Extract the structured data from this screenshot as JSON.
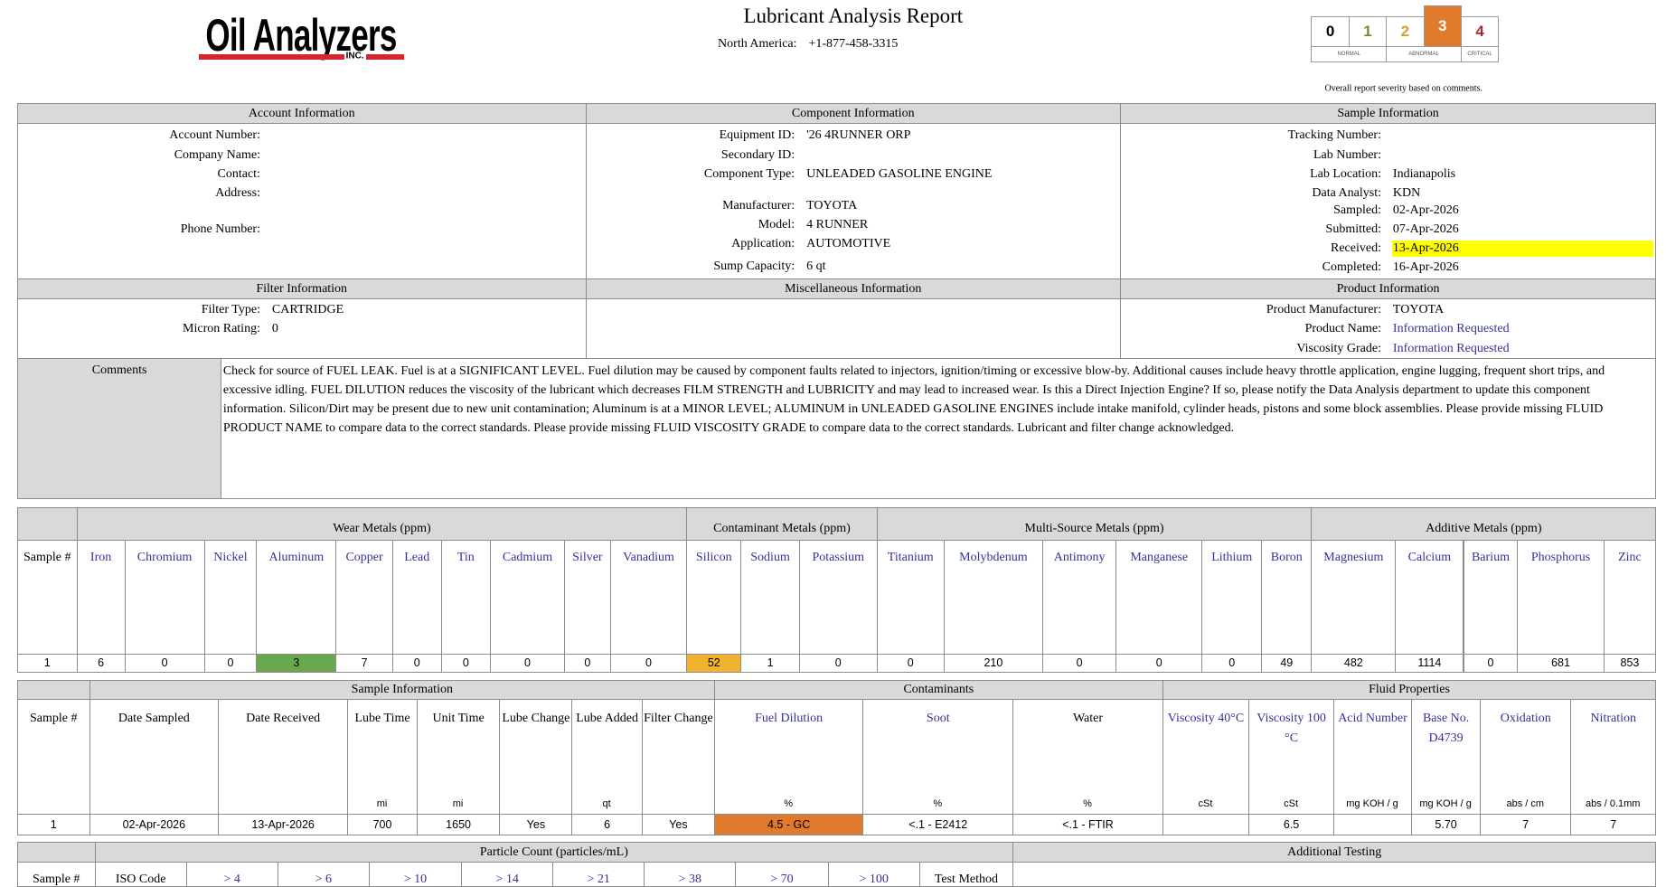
{
  "header": {
    "logo": "Oil Analyzers",
    "logo_suffix": "INC.",
    "title": "Lubricant Analysis Report",
    "region": "North America:",
    "phone": "+1-877-458-3315"
  },
  "severity": {
    "levels": [
      "0",
      "1",
      "2",
      "3",
      "4"
    ],
    "colors": [
      "#000000",
      "#6f8f2a",
      "#d4a22a",
      "#ffffff",
      "#a3282c"
    ],
    "selected": 3,
    "selected_color": "#e07a2c",
    "bands": [
      "NORMAL",
      "ABNORMAL",
      "CRITICAL"
    ],
    "note": "Overall report severity based on comments."
  },
  "account": {
    "heading": "Account Information",
    "fields": [
      {
        "label": "Account Number:"
      },
      {
        "label": "Company Name:"
      },
      {
        "label": "Contact:"
      },
      {
        "label": "Address:"
      },
      {
        "label": "Phone Number:"
      }
    ]
  },
  "component": {
    "heading": "Component Information",
    "fields": [
      {
        "label": "Equipment ID:",
        "value": "'26 4RUNNER ORP"
      },
      {
        "label": "Secondary ID:"
      },
      {
        "label": "Component Type:",
        "value": "UNLEADED GASOLINE ENGINE"
      },
      {
        "label": "Manufacturer:",
        "value": "TOYOTA"
      },
      {
        "label": "Model:",
        "value": "4 RUNNER"
      },
      {
        "label": "Application:",
        "value": "AUTOMOTIVE"
      },
      {
        "label": "Sump Capacity:",
        "value": "6 qt"
      }
    ]
  },
  "sample": {
    "heading": "Sample Information",
    "fields": [
      {
        "label": "Tracking Number:"
      },
      {
        "label": "Lab Number:"
      },
      {
        "label": "Lab Location:",
        "value": "Indianapolis"
      },
      {
        "label": "Data Analyst:",
        "value": "KDN"
      },
      {
        "label": "Sampled:",
        "value": "02-Apr-2026"
      },
      {
        "label": "Submitted:",
        "value": "07-Apr-2026"
      },
      {
        "label": "Received:",
        "value": "13-Apr-2026",
        "highlight": "#ffff00"
      },
      {
        "label": "Completed:",
        "value": "16-Apr-2026"
      }
    ]
  },
  "filter": {
    "heading": "Filter Information",
    "fields": [
      {
        "label": "Filter Type:",
        "value": "CARTRIDGE"
      },
      {
        "label": "Micron Rating:",
        "value": "0"
      }
    ]
  },
  "misc": {
    "heading": "Miscellaneous Information"
  },
  "product": {
    "heading": "Product Information",
    "fields": [
      {
        "label": "Product Manufacturer:",
        "value": "TOYOTA"
      },
      {
        "label": "Product Name:",
        "value": "Information Requested",
        "color": "#333399"
      },
      {
        "label": "Viscosity Grade:",
        "value": "Information Requested",
        "color": "#333399"
      }
    ]
  },
  "comments": {
    "label": "Comments",
    "text": "Check for source of FUEL LEAK. Fuel is at a SIGNIFICANT LEVEL. Fuel dilution may be caused by component faults related to injectors, ignition/timing or excessive blow-by. Additional causes include heavy throttle application, engine lugging, frequent short trips, and excessive idling. FUEL DILUTION reduces the viscosity of the lubricant which decreases FILM STRENGTH and LUBRICITY and may lead to increased wear. Is this a Direct Injection Engine? If so, please notify the Data Analysis department to update this component information. Silicon/Dirt may be present due to new unit contamination; Aluminum is at a MINOR LEVEL; ALUMINUM in UNLEADED GASOLINE ENGINES include intake manifold, cylinder heads, pistons and some block assemblies. Please provide missing FLUID PRODUCT NAME to compare data to the correct standards. Please provide missing FLUID VISCOSITY GRADE to compare data to the correct standards. Lubricant and filter change acknowledged."
  },
  "metals": {
    "groups": [
      {
        "name": "Wear Metals (ppm)",
        "span": 10
      },
      {
        "name": "Contaminant Metals (ppm)",
        "span": 3
      },
      {
        "name": "Multi-Source Metals (ppm)",
        "span": 6
      },
      {
        "name": "Additive Metals (ppm)",
        "span": 5
      }
    ],
    "sample_header": "Sample #",
    "columns": [
      {
        "name": "Iron",
        "color": "#333399"
      },
      {
        "name": "Chromium",
        "color": "#333399"
      },
      {
        "name": "Nickel",
        "color": "#333399"
      },
      {
        "name": "Aluminum",
        "color": "#333399"
      },
      {
        "name": "Copper",
        "color": "#333399"
      },
      {
        "name": "Lead",
        "color": "#333399"
      },
      {
        "name": "Tin",
        "color": "#333399"
      },
      {
        "name": "Cadmium",
        "color": "#333399"
      },
      {
        "name": "Silver",
        "color": "#333399"
      },
      {
        "name": "Vanadium",
        "color": "#333399"
      },
      {
        "name": "Silicon",
        "color": "#333399"
      },
      {
        "name": "Sodium",
        "color": "#333399"
      },
      {
        "name": "Potassium",
        "color": "#333399"
      },
      {
        "name": "Titanium",
        "color": "#333399"
      },
      {
        "name": "Molybdenum",
        "color": "#333399"
      },
      {
        "name": "Antimony",
        "color": "#333399"
      },
      {
        "name": "Manganese",
        "color": "#333399"
      },
      {
        "name": "Lithium",
        "color": "#333399"
      },
      {
        "name": "Boron",
        "color": "#333399"
      },
      {
        "name": "Magnesium",
        "color": "#333399"
      },
      {
        "name": "Calcium",
        "color": "#333399"
      },
      {
        "name": "Barium",
        "color": "#333399"
      },
      {
        "name": "Phosphorus",
        "color": "#333399"
      },
      {
        "name": "Zinc",
        "color": "#333399"
      }
    ],
    "rows": [
      {
        "sample": 1,
        "values": [
          6,
          0,
          0,
          {
            "value": 3,
            "color": "#6aa84f"
          },
          7,
          0,
          0,
          0,
          0,
          0,
          {
            "value": 52,
            "color": "#f1b32e"
          },
          1,
          0,
          0,
          210,
          0,
          0,
          0,
          49,
          482,
          1114,
          0,
          681,
          853
        ]
      }
    ]
  },
  "sample_table": {
    "groups": [
      {
        "name": "Sample Information",
        "span": 7
      },
      {
        "name": "Contaminants",
        "span": 3
      },
      {
        "name": "Fluid Properties",
        "span": 6
      }
    ],
    "sample_header": "Sample #",
    "columns": [
      {
        "name": "Date Sampled"
      },
      {
        "name": "Date  Received"
      },
      {
        "name": "Lube Time",
        "unit": "mi"
      },
      {
        "name": "Unit Time",
        "unit": "mi"
      },
      {
        "name": "Lube Change"
      },
      {
        "name": "Lube Added",
        "unit": "qt"
      },
      {
        "name": "Filter Change"
      },
      {
        "name": "Fuel Dilution",
        "unit": "%",
        "color": "#333399"
      },
      {
        "name": "Soot",
        "unit": "%",
        "color": "#333399"
      },
      {
        "name": "Water",
        "unit": "%"
      },
      {
        "name": "Viscosity 40°C",
        "unit": "cSt",
        "color": "#333399"
      },
      {
        "name": "Viscosity 100 °C",
        "unit": "cSt",
        "color": "#333399"
      },
      {
        "name": "Acid Number",
        "unit": "mg KOH / g",
        "color": "#333399"
      },
      {
        "name": "Base No. D4739",
        "unit": "mg KOH / g",
        "color": "#333399"
      },
      {
        "name": "Oxidation",
        "unit": "abs / cm",
        "color": "#333399"
      },
      {
        "name": "Nitration",
        "unit": "abs / 0.1mm",
        "color": "#333399"
      }
    ],
    "rows": [
      {
        "sample": 1,
        "values": [
          "02-Apr-2026",
          "13-Apr-2026",
          700,
          1650,
          "Yes",
          6,
          "Yes",
          {
            "value": "4.5 - GC",
            "color": "#e07a2c"
          },
          "<.1 - E2412",
          "<.1 - FTIR",
          null,
          6.5,
          null,
          "5.70",
          7,
          7
        ]
      }
    ]
  },
  "particle_table": {
    "groups": [
      {
        "name": "Particle Count (particles/mL)",
        "span": 10
      },
      {
        "name": "Additional Testing",
        "span": 1
      }
    ],
    "sample_header": "Sample #",
    "columns": [
      {
        "name": "ISO Code"
      },
      {
        "name": "> 4",
        "color": "#333399"
      },
      {
        "name": "> 6",
        "color": "#333399"
      },
      {
        "name": "> 10",
        "color": "#333399"
      },
      {
        "name": "> 14",
        "color": "#333399"
      },
      {
        "name": "> 21",
        "color": "#333399"
      },
      {
        "name": "> 38",
        "color": "#333399"
      },
      {
        "name": "> 70",
        "color": "#333399"
      },
      {
        "name": "> 100",
        "color": "#333399"
      },
      {
        "name": "Test Method"
      },
      null
    ],
    "rows": []
  }
}
